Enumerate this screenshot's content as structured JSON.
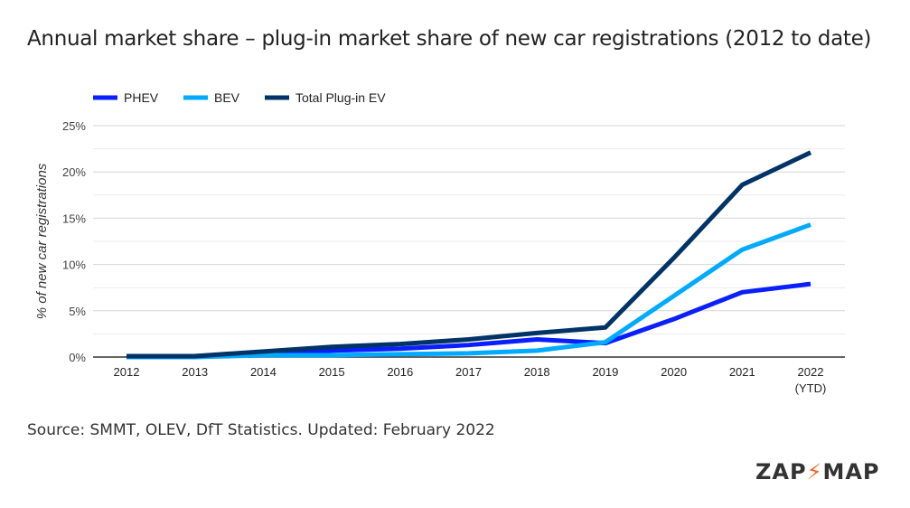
{
  "title": "Annual market share – plug-in market share of new car registrations (2012 to date)",
  "source": "Source: SMMT, OLEV, DfT Statistics. Updated: February 2022",
  "logo": "ZAP MAP",
  "chart_data": {
    "type": "line",
    "title": "Annual market share – plug-in market share of new car registrations (2012 to date)",
    "ylabel": "% of new car registrations",
    "xlabel": "",
    "categories": [
      "2012",
      "2013",
      "2014",
      "2015",
      "2016",
      "2017",
      "2018",
      "2019",
      "2020",
      "2021",
      "2022"
    ],
    "last_category_sub": "(YTD)",
    "ylim": [
      0,
      25
    ],
    "yticks": [
      "0%",
      "5%",
      "10%",
      "15%",
      "20%",
      "25%"
    ],
    "legend_position": "top-left",
    "grid": true,
    "series": [
      {
        "name": "PHEV",
        "color": "#0a1fff",
        "values": [
          0.1,
          0.1,
          0.4,
          0.7,
          0.9,
          1.3,
          1.9,
          1.5,
          4.1,
          7.0,
          7.9
        ]
      },
      {
        "name": "BEV",
        "color": "#00aaff",
        "values": [
          0.0,
          0.0,
          0.2,
          0.2,
          0.3,
          0.4,
          0.7,
          1.6,
          6.6,
          11.6,
          14.3
        ]
      },
      {
        "name": "Total Plug-in EV",
        "color": "#003366",
        "values": [
          0.1,
          0.1,
          0.6,
          1.1,
          1.4,
          1.9,
          2.6,
          3.2,
          10.7,
          18.6,
          22.1
        ]
      }
    ]
  }
}
